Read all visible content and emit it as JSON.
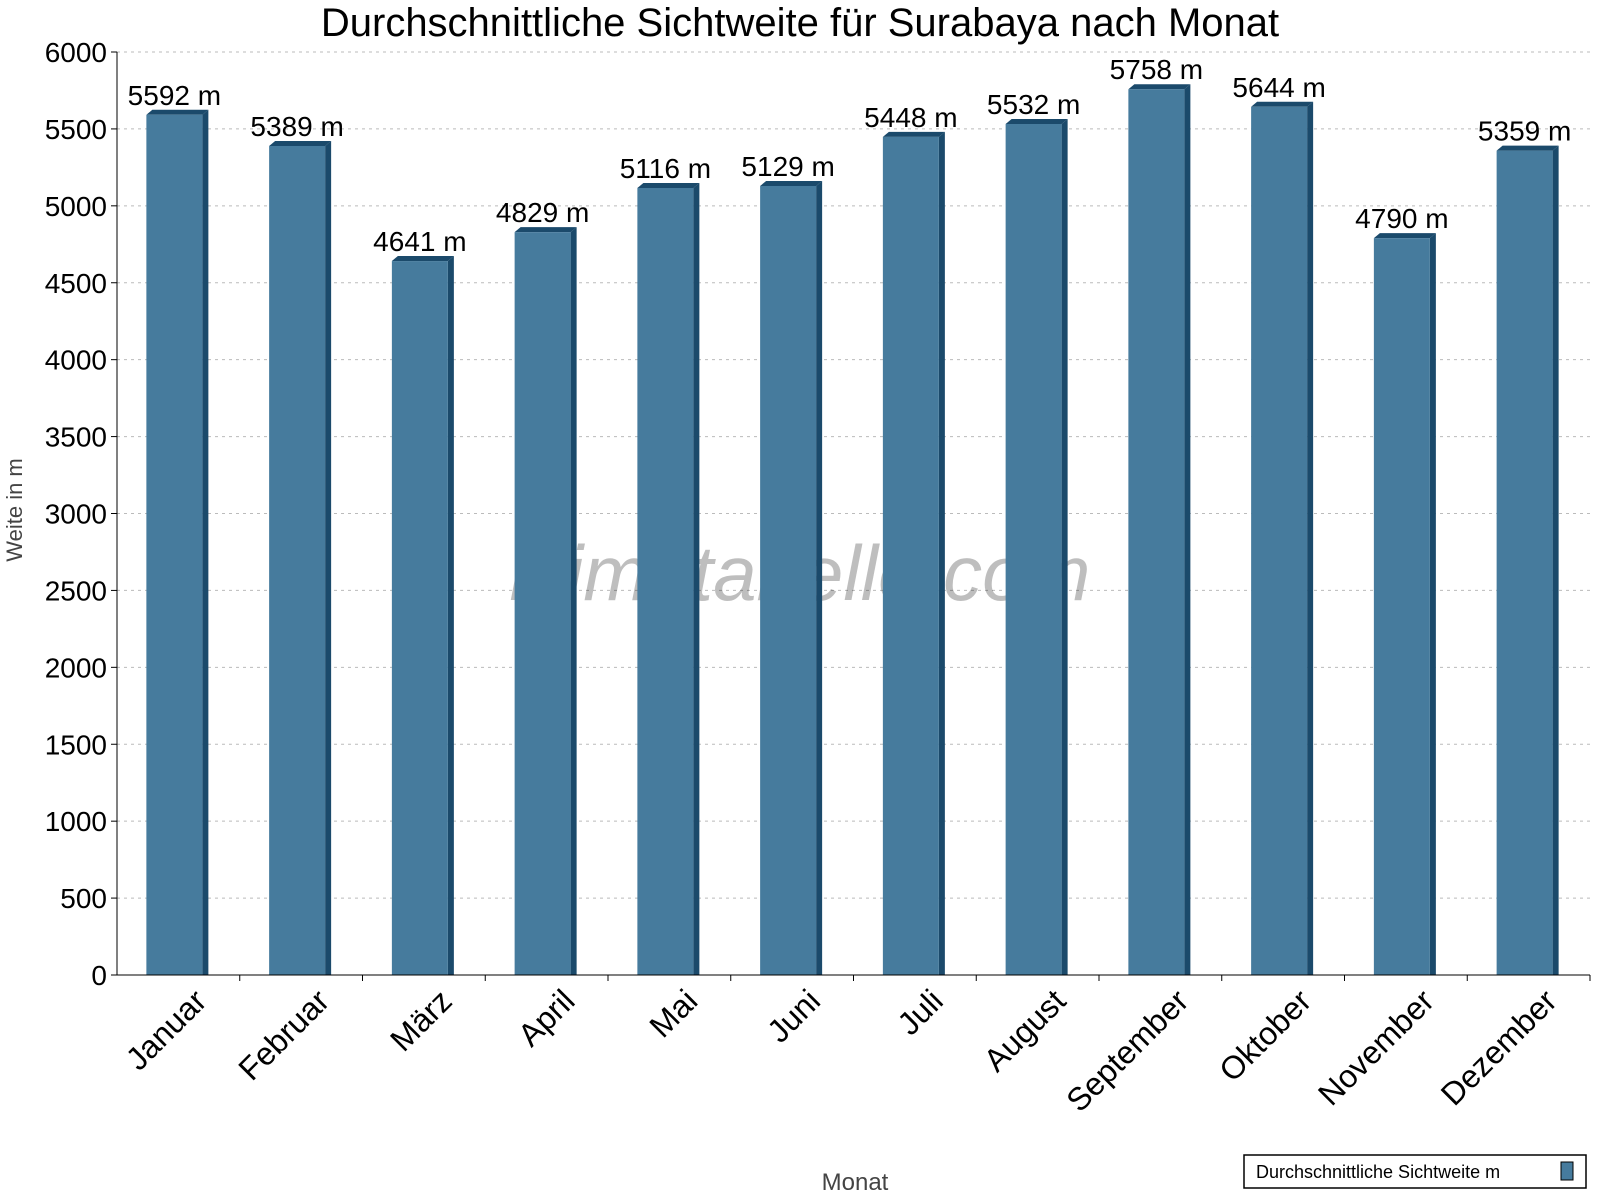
{
  "chart_data": {
    "type": "bar",
    "title": "Durchschnittliche Sichtweite für Surabaya nach Monat",
    "xlabel": "Monat",
    "ylabel": "Weite in m",
    "ylim": [
      0,
      6000
    ],
    "yticks": [
      "0",
      "500",
      "1000",
      "1500",
      "2000",
      "2500",
      "3000",
      "3500",
      "4000",
      "4500",
      "5000",
      "5500",
      "6000"
    ],
    "grid": true,
    "legend_position": "top-right",
    "categories": [
      "Januar",
      "Februar",
      "März",
      "April",
      "Mai",
      "Juni",
      "Juli",
      "August",
      "September",
      "Oktober",
      "November",
      "Dezember"
    ],
    "series": [
      {
        "name": "Durchschnittliche Sichtweite m",
        "values": [
          5592,
          5389,
          4641,
          4829,
          5116,
          5129,
          5448,
          5532,
          5758,
          5644,
          4790,
          5359
        ],
        "color": "#467b9d"
      }
    ],
    "data_labels": [
      "5592 m",
      "5389 m",
      "4641 m",
      "4829 m",
      "5116 m",
      "5129 m",
      "5448 m",
      "5532 m",
      "5758 m",
      "5644 m",
      "4790 m",
      "5359 m"
    ]
  },
  "watermark": "klimatabelle.com"
}
